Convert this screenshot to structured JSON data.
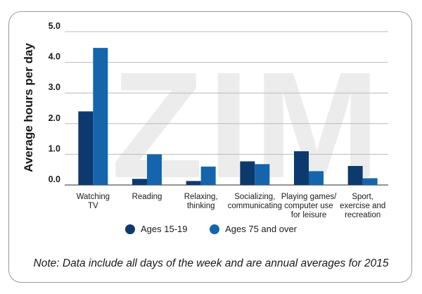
{
  "chart_data": {
    "type": "bar",
    "title": "",
    "xlabel": "",
    "ylabel": "Average hours per day",
    "ylim": [
      0,
      5
    ],
    "yticks": [
      "0.0",
      "1.0",
      "2.0",
      "3.0",
      "4.0",
      "5.0"
    ],
    "categories": [
      [
        "Watching",
        "TV"
      ],
      [
        "Reading"
      ],
      [
        "Relaxing,",
        "thinking"
      ],
      [
        "Socializing,",
        "communicating"
      ],
      [
        "Playing games/",
        "computer use",
        "for leisure"
      ],
      [
        "Sport,",
        "exercise and",
        "recreation"
      ]
    ],
    "series": [
      {
        "name": "Ages 15-19",
        "color": "#0d3a6e",
        "values": [
          2.4,
          0.2,
          0.13,
          0.77,
          1.1,
          0.62
        ]
      },
      {
        "name": "Ages 75 and over",
        "color": "#1565ad",
        "values": [
          4.47,
          1.0,
          0.6,
          0.68,
          0.45,
          0.22
        ]
      }
    ],
    "watermark": "ZIM",
    "legend_position": "bottom",
    "grid": true
  },
  "note": "Note: Data include all days of the week and are annual averages for 2015"
}
